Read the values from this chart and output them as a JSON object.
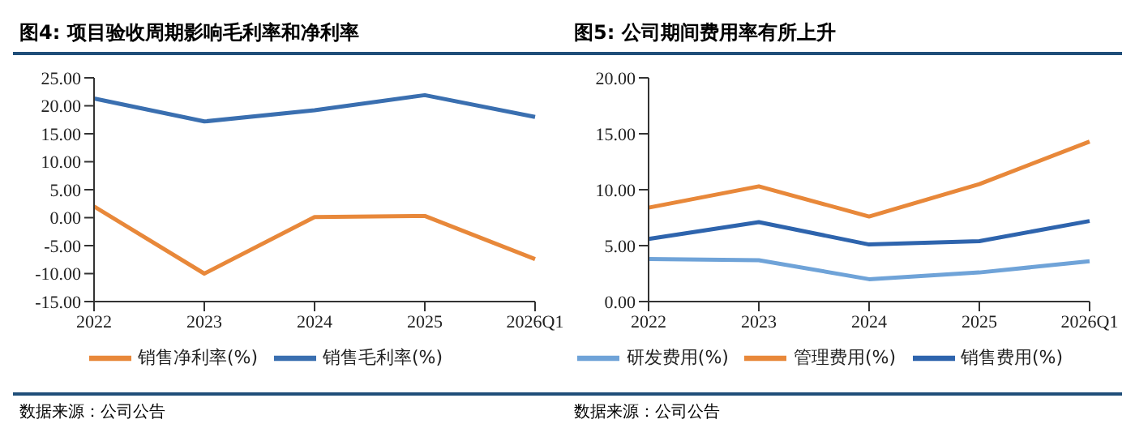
{
  "chart_data": [
    {
      "type": "line",
      "title": "图4: 项目验收周期影响毛利率和净利率",
      "categories": [
        "2022",
        "2023",
        "2024",
        "2025",
        "2026Q1"
      ],
      "series": [
        {
          "name": "销售毛利率(%)",
          "color": "#3a6fb0",
          "values": [
            21.3,
            17.2,
            19.2,
            21.9,
            18.0
          ]
        },
        {
          "name": "销售净利率(%)",
          "color": "#e8883a",
          "values": [
            2.0,
            -10.0,
            0.1,
            0.3,
            -7.4
          ]
        }
      ],
      "ylim": [
        -15,
        25
      ],
      "yticks": [
        {
          "value": -15,
          "label": "-15.00"
        },
        {
          "value": -10,
          "label": "-10.00"
        },
        {
          "value": -5,
          "label": "-5.00"
        },
        {
          "value": 0,
          "label": "0.00"
        },
        {
          "value": 5,
          "label": "5.00"
        },
        {
          "value": 10,
          "label": "10.00"
        },
        {
          "value": 15,
          "label": "15.00"
        },
        {
          "value": 20,
          "label": "20.00"
        },
        {
          "value": 25,
          "label": "25.00"
        }
      ],
      "grid": false,
      "legend": "bottom",
      "marker": "none",
      "annotations": [
        "数据来源：公司公告"
      ]
    },
    {
      "type": "line",
      "title": "图5: 公司期间费用率有所上升",
      "categories": [
        "2022",
        "2023",
        "2024",
        "2025",
        "2026Q1"
      ],
      "series": [
        {
          "name": "销售费用(%)",
          "color": "#2e64ad",
          "values": [
            5.6,
            7.1,
            5.1,
            5.4,
            7.2
          ]
        },
        {
          "name": "管理费用(%)",
          "color": "#e8883a",
          "values": [
            8.4,
            10.3,
            7.6,
            10.5,
            14.3
          ]
        },
        {
          "name": "研发费用(%)",
          "color": "#6fa3d8",
          "values": [
            3.8,
            3.7,
            2.0,
            2.6,
            3.6
          ]
        }
      ],
      "ylim": [
        0,
        20
      ],
      "yticks": [
        {
          "value": 0,
          "label": "0.00"
        },
        {
          "value": 5,
          "label": "5.00"
        },
        {
          "value": 10,
          "label": "10.00"
        },
        {
          "value": 15,
          "label": "15.00"
        },
        {
          "value": 20,
          "label": "20.00"
        }
      ],
      "grid": false,
      "legend": "bottom",
      "marker": "none",
      "annotations": [
        "数据来源：公司公告"
      ]
    }
  ]
}
